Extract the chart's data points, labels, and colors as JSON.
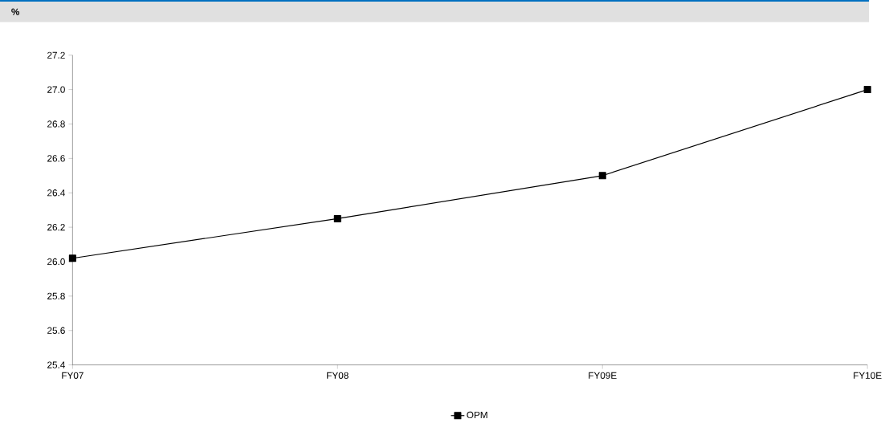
{
  "chart_data": {
    "type": "line",
    "ylabel": "%",
    "categories": [
      "FY07",
      "FY08",
      "FY09E",
      "FY10E"
    ],
    "series": [
      {
        "name": "OPM",
        "color": "#000000",
        "values": [
          26.02,
          26.25,
          26.5,
          27.0
        ]
      }
    ],
    "ylim": [
      25.4,
      27.2
    ],
    "yticks": [
      {
        "value": 25.4,
        "label": "25.4"
      },
      {
        "value": 25.6,
        "label": "25.6"
      },
      {
        "value": 25.8,
        "label": "25.8"
      },
      {
        "value": 26.0,
        "label": "26.0"
      },
      {
        "value": 26.2,
        "label": "26.2"
      },
      {
        "value": 26.4,
        "label": "26.4"
      },
      {
        "value": 26.6,
        "label": "26.6"
      },
      {
        "value": 26.8,
        "label": "26.8"
      },
      {
        "value": 27.0,
        "label": "27.0"
      },
      {
        "value": 27.2,
        "label": "27.2"
      }
    ],
    "grid": false,
    "legend": "bottom",
    "marker": "square",
    "line_style": "solid"
  }
}
